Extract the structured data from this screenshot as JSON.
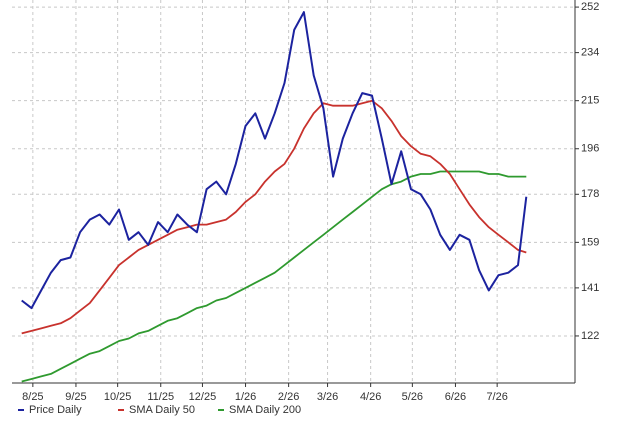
{
  "chart_data": {
    "type": "line",
    "x": [
      -8,
      -1,
      6,
      13,
      20,
      27,
      34,
      41,
      48,
      55,
      62,
      69,
      76,
      83,
      90,
      97,
      104,
      111,
      118,
      125,
      132,
      139,
      146,
      153,
      160,
      167,
      174,
      181,
      188,
      195,
      202,
      209,
      216,
      223,
      230,
      237,
      244,
      251,
      258,
      265,
      272,
      279,
      286,
      293,
      300,
      307,
      314,
      321,
      328,
      335,
      342,
      349,
      355
    ],
    "xticks": [
      {
        "value": 0,
        "label": "8/25"
      },
      {
        "value": 31,
        "label": "9/25"
      },
      {
        "value": 61,
        "label": "10/25"
      },
      {
        "value": 92,
        "label": "11/25"
      },
      {
        "value": 122,
        "label": "12/25"
      },
      {
        "value": 153,
        "label": "1/26"
      },
      {
        "value": 184,
        "label": "2/26"
      },
      {
        "value": 212,
        "label": "3/26"
      },
      {
        "value": 243,
        "label": "4/26"
      },
      {
        "value": 273,
        "label": "5/26"
      },
      {
        "value": 304,
        "label": "6/26"
      },
      {
        "value": 334,
        "label": "7/26"
      }
    ],
    "xlim": [
      -15,
      390
    ],
    "ylim": [
      103.4,
      254.8
    ],
    "yticks": [
      122,
      141,
      159,
      178,
      196,
      215,
      234,
      252
    ],
    "grid": true,
    "series": [
      {
        "name": "Price Daily",
        "color": "#1c239f",
        "values": [
          136,
          133,
          140,
          147,
          152,
          153,
          163,
          168,
          170,
          166,
          172,
          160,
          163,
          158,
          167,
          163,
          170,
          166,
          163,
          180,
          183,
          178,
          190,
          205,
          210,
          200,
          210,
          222,
          243,
          250,
          225,
          212,
          185,
          200,
          210,
          218,
          217,
          200,
          182,
          195,
          180,
          178,
          172,
          162,
          156,
          162,
          160,
          148,
          140,
          146,
          147,
          150,
          177
        ]
      },
      {
        "name": "SMA Daily 50",
        "color": "#c8322d",
        "values": [
          123,
          124,
          125,
          126,
          127,
          129,
          132,
          135,
          140,
          145,
          150,
          153,
          156,
          158,
          160,
          162,
          164,
          165,
          166,
          166,
          167,
          168,
          171,
          175,
          178,
          183,
          187,
          190,
          196,
          204,
          210,
          214,
          213,
          213,
          213,
          214,
          215,
          212,
          207,
          201,
          197,
          194,
          193,
          190,
          186,
          180,
          174,
          169,
          165,
          162,
          159,
          156,
          155
        ]
      },
      {
        "name": "SMA Daily 200",
        "color": "#2f9a2f",
        "values": [
          104,
          105,
          106,
          107,
          109,
          111,
          113,
          115,
          116,
          118,
          120,
          121,
          123,
          124,
          126,
          128,
          129,
          131,
          133,
          134,
          136,
          137,
          139,
          141,
          143,
          145,
          147,
          150,
          153,
          156,
          159,
          162,
          165,
          168,
          171,
          174,
          177,
          180,
          182,
          183,
          185,
          186,
          186,
          187,
          187,
          187,
          187,
          187,
          186,
          186,
          185,
          185,
          185
        ]
      }
    ]
  }
}
